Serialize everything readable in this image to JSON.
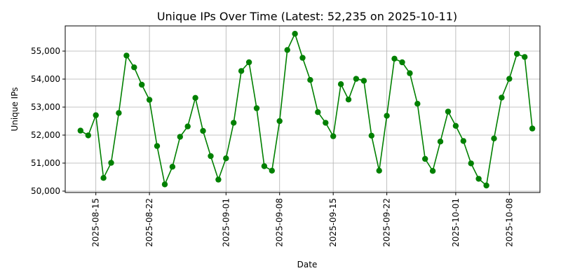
{
  "chart_data": {
    "type": "line",
    "title": "Unique IPs Over Time (Latest: 52,235 on 2025-10-11)",
    "xlabel": "Date",
    "ylabel": "Unique IPs",
    "grid": true,
    "color": "#008000",
    "x_tick_labels": [
      "2025-08-15",
      "2025-08-22",
      "2025-09-01",
      "2025-09-08",
      "2025-09-15",
      "2025-09-22",
      "2025-10-01",
      "2025-10-08"
    ],
    "y_tick_labels": [
      "50,000",
      "51,000",
      "52,000",
      "53,000",
      "54,000",
      "55,000"
    ],
    "y_ticks": [
      50000,
      51000,
      52000,
      53000,
      54000,
      55000
    ],
    "ylim": [
      49950,
      55900
    ],
    "xlim": [
      "2025-08-11",
      "2025-10-12"
    ],
    "series": [
      {
        "x": [
          "2025-08-13",
          "2025-08-14",
          "2025-08-15",
          "2025-08-16",
          "2025-08-17",
          "2025-08-18",
          "2025-08-19",
          "2025-08-20",
          "2025-08-21",
          "2025-08-22",
          "2025-08-23",
          "2025-08-24",
          "2025-08-25",
          "2025-08-26",
          "2025-08-27",
          "2025-08-28",
          "2025-08-29",
          "2025-08-30",
          "2025-08-31",
          "2025-09-01",
          "2025-09-02",
          "2025-09-03",
          "2025-09-04",
          "2025-09-05",
          "2025-09-06",
          "2025-09-07",
          "2025-09-08",
          "2025-09-09",
          "2025-09-10",
          "2025-09-11",
          "2025-09-12",
          "2025-09-13",
          "2025-09-14",
          "2025-09-15",
          "2025-09-16",
          "2025-09-17",
          "2025-09-18",
          "2025-09-19",
          "2025-09-20",
          "2025-09-21",
          "2025-09-22",
          "2025-09-23",
          "2025-09-24",
          "2025-09-25",
          "2025-09-26",
          "2025-09-27",
          "2025-09-28",
          "2025-09-29",
          "2025-09-30",
          "2025-10-01",
          "2025-10-02",
          "2025-10-03",
          "2025-10-04",
          "2025-10-05",
          "2025-10-06",
          "2025-10-07",
          "2025-10-08",
          "2025-10-09",
          "2025-10-10",
          "2025-10-11"
        ],
        "y": [
          52160,
          51990,
          52710,
          50470,
          51010,
          52790,
          54840,
          54420,
          53800,
          53260,
          51610,
          50240,
          50870,
          51940,
          52310,
          53330,
          52150,
          51250,
          50410,
          51170,
          52440,
          54290,
          54600,
          52960,
          50890,
          50730,
          52500,
          55040,
          55620,
          54760,
          53970,
          52820,
          52440,
          51960,
          53820,
          53270,
          54010,
          53940,
          51980,
          50730,
          52690,
          54730,
          54600,
          54210,
          53120,
          51150,
          50720,
          51770,
          52840,
          52330,
          51790,
          50990,
          50440,
          50200,
          51880,
          53340,
          54010,
          54900,
          54790,
          52235
        ]
      }
    ]
  }
}
